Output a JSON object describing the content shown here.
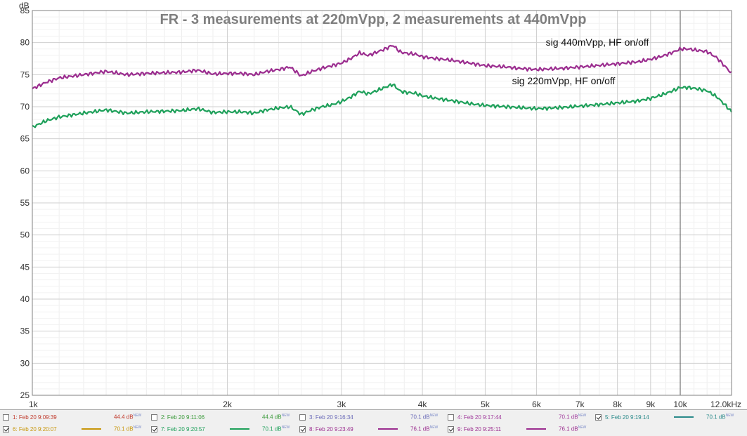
{
  "chart_data": {
    "type": "line",
    "title": "FR - 3 measurements at 220mVpp, 2 measurements at 440mVpp",
    "ylabel": "dB",
    "xlabel": "",
    "xscale": "log",
    "xlim": [
      1000,
      12000
    ],
    "ylim": [
      25,
      85
    ],
    "x_tick_labels": [
      "1k",
      "2k",
      "3k",
      "4k",
      "5k",
      "6k",
      "7k",
      "8k",
      "9k",
      "10k",
      "12.0kHz"
    ],
    "x_tick_values": [
      1000,
      2000,
      3000,
      4000,
      5000,
      6000,
      7000,
      8000,
      9000,
      10000,
      12000
    ],
    "y_ticks": [
      25,
      30,
      35,
      40,
      45,
      50,
      55,
      60,
      65,
      70,
      75,
      80,
      85
    ],
    "grid": true,
    "cursor_x": 10000,
    "annotations": [
      {
        "text": "sig 440mVpp, HF on/off",
        "x": 6200,
        "y": 79.5
      },
      {
        "text": "sig 220mVpp, HF on/off",
        "x": 5500,
        "y": 73.5
      }
    ],
    "series": [
      {
        "color": "#9b2d8f",
        "x": [
          1000,
          1050,
          1100,
          1200,
          1300,
          1400,
          1500,
          1600,
          1700,
          1800,
          1900,
          2000,
          2100,
          2200,
          2300,
          2400,
          2500,
          2600,
          2700,
          2800,
          2900,
          3000,
          3100,
          3200,
          3300,
          3400,
          3500,
          3600,
          3700,
          3800,
          3900,
          4000,
          4200,
          4400,
          4600,
          4800,
          5000,
          5200,
          5400,
          5600,
          5800,
          6000,
          6300,
          6600,
          7000,
          7400,
          7800,
          8200,
          8600,
          9000,
          9400,
          9800,
          10000,
          10300,
          10600,
          11000,
          11400,
          11800,
          12000
        ],
        "values": [
          72.8,
          73.8,
          74.5,
          75.0,
          75.5,
          75.0,
          75.2,
          75.3,
          75.4,
          75.7,
          75.1,
          75.2,
          75.2,
          75.0,
          75.5,
          75.8,
          76.2,
          74.8,
          75.5,
          76.0,
          76.4,
          76.8,
          77.5,
          78.4,
          78.0,
          78.5,
          79.0,
          79.6,
          78.5,
          78.3,
          78.2,
          77.8,
          77.5,
          77.3,
          77.0,
          76.7,
          76.4,
          76.3,
          76.2,
          76.0,
          75.9,
          75.8,
          75.9,
          76.0,
          76.2,
          76.4,
          76.6,
          76.8,
          77.0,
          77.4,
          77.9,
          78.6,
          79.0,
          79.0,
          78.8,
          78.6,
          77.6,
          76.0,
          75.2
        ]
      },
      {
        "color": "#1ea05a",
        "x": [
          1000,
          1050,
          1100,
          1200,
          1300,
          1400,
          1500,
          1600,
          1700,
          1800,
          1900,
          2000,
          2100,
          2200,
          2300,
          2400,
          2500,
          2600,
          2700,
          2800,
          2900,
          3000,
          3100,
          3200,
          3300,
          3400,
          3500,
          3600,
          3700,
          3800,
          3900,
          4000,
          4200,
          4400,
          4600,
          4800,
          5000,
          5200,
          5400,
          5600,
          5800,
          6000,
          6300,
          6600,
          7000,
          7400,
          7800,
          8200,
          8600,
          9000,
          9400,
          9800,
          10000,
          10300,
          10600,
          11000,
          11400,
          11800,
          12000
        ],
        "values": [
          66.8,
          67.8,
          68.4,
          69.0,
          69.5,
          69.0,
          69.2,
          69.3,
          69.4,
          69.7,
          69.1,
          69.2,
          69.2,
          69.0,
          69.5,
          69.8,
          70.0,
          68.8,
          69.5,
          70.0,
          70.3,
          70.8,
          71.5,
          72.4,
          72.0,
          72.5,
          73.0,
          73.5,
          72.4,
          72.2,
          72.1,
          71.7,
          71.3,
          71.0,
          70.7,
          70.4,
          70.2,
          70.1,
          70.0,
          69.9,
          69.8,
          69.7,
          69.8,
          69.9,
          70.1,
          70.3,
          70.5,
          70.7,
          70.9,
          71.3,
          71.9,
          72.6,
          73.0,
          73.0,
          72.8,
          72.5,
          71.5,
          70.0,
          69.2
        ]
      }
    ]
  },
  "legend": {
    "items": [
      {
        "checked": false,
        "label": "1: Feb 20 9:09:39",
        "level": "44.4 dB",
        "sup": "NEW",
        "color": "#c0392b",
        "line": false
      },
      {
        "checked": false,
        "label": "2: Feb 20 9:11:06",
        "level": "44.4 dB",
        "sup": "NEW",
        "color": "#3a9a3a",
        "line": false
      },
      {
        "checked": false,
        "label": "3: Feb 20 9:16:34",
        "level": "70.1 dB",
        "sup": "NEW",
        "color": "#6a6ab8",
        "line": false
      },
      {
        "checked": false,
        "label": "4: Feb 20 9:17:44",
        "level": "70.1 dB",
        "sup": "NEW",
        "color": "#a03a9c",
        "line": false
      },
      {
        "checked": true,
        "label": "5: Feb 20 9:19:14",
        "level": "70.1 dB",
        "sup": "NEW",
        "color": "#2a8a8a",
        "line": true
      },
      {
        "checked": true,
        "label": "6: Feb 20 9:20:07",
        "level": "70.1 dB",
        "sup": "NEW",
        "color": "#c8960a",
        "line": true
      },
      {
        "checked": true,
        "label": "7: Feb 20 9:20:57",
        "level": "70.1 dB",
        "sup": "NEW",
        "color": "#1ea05a",
        "line": true
      },
      {
        "checked": true,
        "label": "8: Feb 20 9:23:49",
        "level": "76.1 dB",
        "sup": "NEW",
        "color": "#9b2d8f",
        "line": true
      },
      {
        "checked": true,
        "label": "9: Feb 20 9:25:11",
        "level": "76.1 dB",
        "sup": "NEW",
        "color": "#9b2d8f",
        "line": true
      }
    ]
  }
}
